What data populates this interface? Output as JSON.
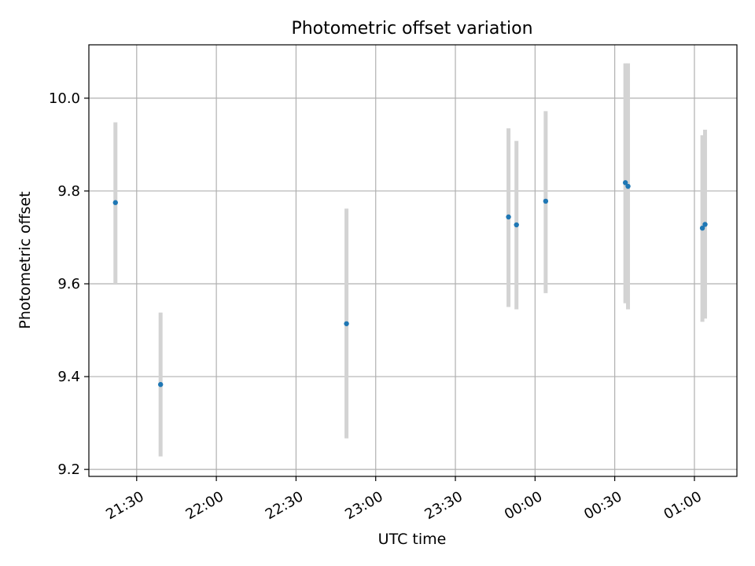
{
  "chart_data": {
    "type": "scatter",
    "title": "Photometric offset variation",
    "xlabel": "UTC time",
    "ylabel": "Photometric offset",
    "x_axis_kind": "utc-time",
    "x_ticks": [
      "21:30",
      "22:00",
      "22:30",
      "23:00",
      "23:30",
      "00:00",
      "00:30",
      "01:00"
    ],
    "y_ticks": [
      "9.2",
      "9.4",
      "9.6",
      "9.8",
      "10.0"
    ],
    "ylim": [
      9.185,
      10.115
    ],
    "xlim": [
      "21:12",
      "01:16"
    ],
    "grid": true,
    "point_color": "#1f77b4",
    "errorbar_color": "#d3d3d3",
    "points": [
      {
        "x": "21:22",
        "y": 9.775,
        "ylow": 9.6,
        "yhigh": 9.948
      },
      {
        "x": "21:39",
        "y": 9.383,
        "ylow": 9.228,
        "yhigh": 9.538
      },
      {
        "x": "22:49",
        "y": 9.514,
        "ylow": 9.267,
        "yhigh": 9.762
      },
      {
        "x": "23:50",
        "y": 9.744,
        "ylow": 9.55,
        "yhigh": 9.935
      },
      {
        "x": "23:53",
        "y": 9.727,
        "ylow": 9.545,
        "yhigh": 9.908
      },
      {
        "x": "00:04",
        "y": 9.778,
        "ylow": 9.58,
        "yhigh": 9.972
      },
      {
        "x": "00:34",
        "y": 9.818,
        "ylow": 9.558,
        "yhigh": 10.075
      },
      {
        "x": "00:35",
        "y": 9.81,
        "ylow": 9.545,
        "yhigh": 10.075
      },
      {
        "x": "01:03",
        "y": 9.72,
        "ylow": 9.518,
        "yhigh": 9.92
      },
      {
        "x": "01:04",
        "y": 9.728,
        "ylow": 9.525,
        "yhigh": 9.932
      }
    ]
  }
}
